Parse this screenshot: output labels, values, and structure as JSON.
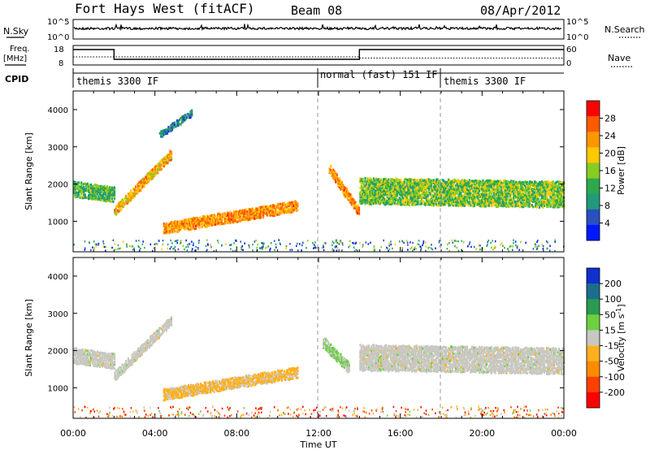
{
  "header": {
    "station": "Fort Hays West (fitACF)",
    "beam": "Beam 08",
    "date": "08/Apr/2012"
  },
  "top_panels": {
    "nsky_label": "N.Sky",
    "nsky_ticks": [
      "10^5",
      "10^0"
    ],
    "nsearch_label": "N.Search",
    "nsearch_ticks": [
      "10^5",
      "10^0"
    ],
    "freq_label_line1": "Freq.",
    "freq_label_line2": "[MHz]",
    "freq_ticks": [
      "18",
      "8"
    ],
    "nave_label": "Nave",
    "nave_ticks": [
      "60",
      "0"
    ],
    "cpid_label": "CPID",
    "modes": [
      {
        "label": "themis 3300 IF",
        "start_h": 0,
        "end_h": 12
      },
      {
        "label": "normal (fast) 151 IF",
        "start_h": 12,
        "end_h": 18
      },
      {
        "label": "themis 3300 IF",
        "start_h": 18,
        "end_h": 24
      }
    ]
  },
  "axes": {
    "ylabel": "Slant Range [km]",
    "yticks": [
      "4000",
      "3000",
      "2000",
      "1000"
    ],
    "xticks": [
      "00:00",
      "04:00",
      "08:00",
      "12:00",
      "16:00",
      "20:00",
      "00:00"
    ],
    "xlabel": "Time UT"
  },
  "colorbars": {
    "power": {
      "label": "Power [dB]",
      "ticks": [
        "28",
        "24",
        "20",
        "16",
        "12",
        "8",
        "4"
      ],
      "colors": [
        "#ff0000",
        "#ff5a00",
        "#ff9600",
        "#ffc800",
        "#88cc22",
        "#2ea84c",
        "#209a7a",
        "#2850c0",
        "#0018ff"
      ]
    },
    "velocity": {
      "label": "Velocity [m s",
      "label_sup": "-1",
      "label_end": "]",
      "ticks": [
        "200",
        "100",
        "50",
        "15",
        "-15",
        "-50",
        "-100",
        "-200"
      ],
      "colors": [
        "#1030d0",
        "#1a6e8a",
        "#2a9a50",
        "#6cd040",
        "#c8c8c0",
        "#ffb020",
        "#ff8a00",
        "#ff4000",
        "#ff0000"
      ]
    }
  },
  "chart_data": [
    {
      "type": "heatmap",
      "title": "Power",
      "xlabel": "Time UT",
      "ylabel": "Slant Range [km]",
      "xlim_hours": [
        0,
        24
      ],
      "ylim": [
        180,
        4500
      ],
      "colorbar_label": "Power [dB]",
      "colorbar_range": [
        0,
        30
      ],
      "features": [
        {
          "t": [
            0,
            2
          ],
          "range_center": [
            1850,
            1700
          ],
          "thickness": 420,
          "value": 12
        },
        {
          "t": [
            2,
            4.8
          ],
          "range_center": [
            1250,
            2800
          ],
          "thickness": 260,
          "value": 20
        },
        {
          "t": [
            4.2,
            5.8
          ],
          "range_center": [
            3300,
            3900
          ],
          "thickness": 180,
          "value": 8
        },
        {
          "t": [
            4.4,
            11
          ],
          "range_center": [
            800,
            1400
          ],
          "thickness": 300,
          "value": 22
        },
        {
          "t": [
            12.5,
            14
          ],
          "range_center": [
            2400,
            1200
          ],
          "thickness": 260,
          "value": 22
        },
        {
          "t": [
            14,
            24
          ],
          "range_center": [
            1800,
            1700
          ],
          "thickness": 700,
          "value": 14
        }
      ]
    },
    {
      "type": "heatmap",
      "title": "Velocity",
      "xlabel": "Time UT",
      "ylabel": "Slant Range [km]",
      "xlim_hours": [
        0,
        24
      ],
      "ylim": [
        180,
        4500
      ],
      "colorbar_label": "Velocity [m s-1]",
      "colorbar_range": [
        -250,
        250
      ],
      "features": [
        {
          "t": [
            0,
            2
          ],
          "range_center": [
            1850,
            1700
          ],
          "thickness": 420,
          "value": 0
        },
        {
          "t": [
            2,
            4.8
          ],
          "range_center": [
            1300,
            2800
          ],
          "thickness": 260,
          "value": 0
        },
        {
          "t": [
            4.4,
            11
          ],
          "range_center": [
            800,
            1400
          ],
          "thickness": 300,
          "value": -40
        },
        {
          "t": [
            12.2,
            13.5
          ],
          "range_center": [
            2200,
            1500
          ],
          "thickness": 300,
          "value": 30
        },
        {
          "t": [
            14,
            24
          ],
          "range_center": [
            1800,
            1700
          ],
          "thickness": 700,
          "value": 0
        }
      ]
    }
  ]
}
